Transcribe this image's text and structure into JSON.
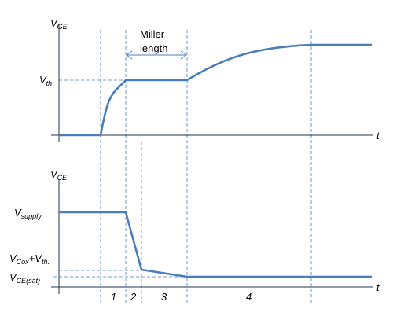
{
  "top_plot": {
    "y_label": {
      "base": "V",
      "sub": "GE"
    },
    "threshold": {
      "base": "V",
      "sub": "th"
    },
    "x_label": "t",
    "annotation": [
      "Miller",
      "length"
    ]
  },
  "bottom_plot": {
    "y_label": {
      "base": "V",
      "sub": "CE"
    },
    "supply": {
      "base": "V",
      "sub": "supply"
    },
    "mid": {
      "base": "V",
      "sub": "Cox",
      "joiner": "+V",
      "sub2": "th."
    },
    "sat": {
      "base": "V",
      "sub": "CE(sat)"
    },
    "x_label": "t"
  },
  "intervals": [
    "1",
    "2",
    "3",
    "4"
  ]
}
